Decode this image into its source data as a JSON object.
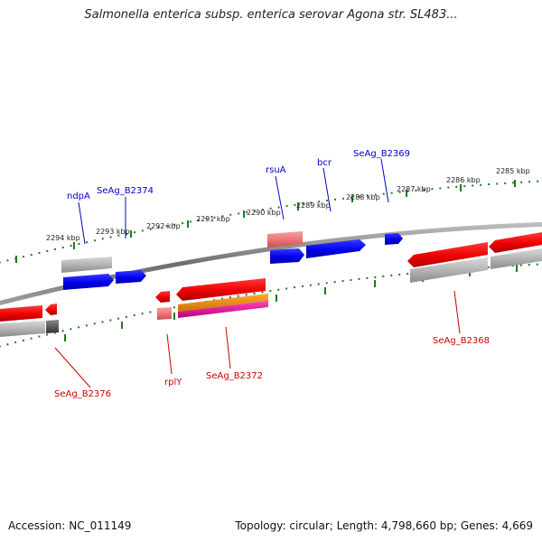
{
  "title": "Salmonella enterica subsp. enterica serovar Agona str. SL483...",
  "footer": {
    "accession": "Accession: NC_011149",
    "genome_info": "Topology: circular; Length: 4,798,660 bp; Genes: 4,669"
  },
  "colors": {
    "backbone": "#7a7a7a",
    "tick": "#1f7a1f",
    "forward_label": "#0000cc",
    "reverse_label": "#cc0000",
    "cds_forward": "#0000ee",
    "cds_reverse": "#ee0000",
    "gene_gray": "#b0b0b0",
    "rna_pink": "#ee7777",
    "orange": "#ee8800",
    "magenta": "#ee1199",
    "dark_gray": "#555555"
  },
  "diagram": {
    "tick_labels": [
      "2294 kbp",
      "2293 kbp",
      "2292 kbp",
      "2291 kbp",
      "2290 kbp",
      "2289 kbp",
      "2288 kbp",
      "2287 kbp",
      "2286 kbp",
      "2285 kbp"
    ],
    "gene_labels": [
      {
        "name": "ndpA",
        "strand": "forward"
      },
      {
        "name": "SeAg_B2374",
        "strand": "forward"
      },
      {
        "name": "rsuA",
        "strand": "forward"
      },
      {
        "name": "bcr",
        "strand": "forward"
      },
      {
        "name": "SeAg_B2369",
        "strand": "forward"
      },
      {
        "name": "SeAg_B2376",
        "strand": "reverse"
      },
      {
        "name": "rplY",
        "strand": "reverse"
      },
      {
        "name": "SeAg_B2372",
        "strand": "reverse"
      },
      {
        "name": "SeAg_B2368",
        "strand": "reverse"
      }
    ]
  }
}
